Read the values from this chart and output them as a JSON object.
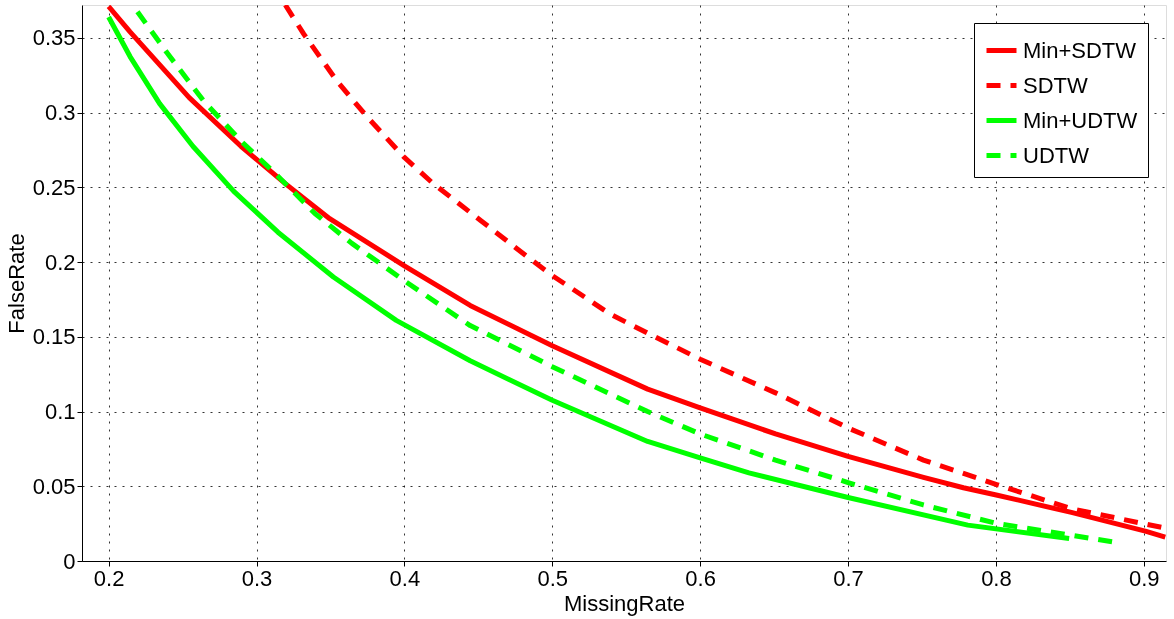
{
  "chart_data": {
    "type": "line",
    "xlabel": "MissingRate",
    "ylabel": "FalseRate",
    "xlim": [
      0.182,
      0.915
    ],
    "ylim": [
      0,
      0.372
    ],
    "xticks": [
      0.2,
      0.3,
      0.4,
      0.5,
      0.6,
      0.7,
      0.8,
      0.9
    ],
    "yticks": [
      0,
      0.05,
      0.1,
      0.15,
      0.2,
      0.25,
      0.3,
      0.35
    ],
    "grid": true,
    "legend": "top right",
    "marker": "none",
    "series": [
      {
        "name": "Min+SDTW",
        "color": "#ff0000",
        "line_style": "solid",
        "x": [
          0.2,
          0.2145,
          0.2545,
          0.2895,
          0.3195,
          0.3495,
          0.4,
          0.4445,
          0.5,
          0.5645,
          0.6,
          0.651,
          0.7,
          0.751,
          0.778,
          0.801,
          0.851,
          0.901,
          0.9145
        ],
        "values": [
          0.371,
          0.354,
          0.31,
          0.2775,
          0.2525,
          0.229,
          0.1975,
          0.171,
          0.144,
          0.115,
          0.1025,
          0.085,
          0.07,
          0.056,
          0.049,
          0.044,
          0.0325,
          0.02,
          0.016
        ]
      },
      {
        "name": "SDTW",
        "color": "#ff0000",
        "line_style": "dashed",
        "x": [
          0.3195,
          0.332,
          0.3545,
          0.3745,
          0.4,
          0.4195,
          0.452,
          0.4845,
          0.5,
          0.5395,
          0.5645,
          0.6,
          0.651,
          0.7,
          0.751,
          0.801,
          0.851,
          0.9145
        ],
        "values": [
          0.372,
          0.3525,
          0.321,
          0.2975,
          0.27,
          0.2525,
          0.2275,
          0.2025,
          0.191,
          0.165,
          0.1525,
          0.135,
          0.1125,
          0.089,
          0.0675,
          0.051,
          0.035,
          0.022
        ]
      },
      {
        "name": "Min+UDTW",
        "color": "#00ff00",
        "line_style": "solid",
        "x": [
          0.2,
          0.2145,
          0.2345,
          0.257,
          0.2845,
          0.3145,
          0.352,
          0.3945,
          0.4445,
          0.5,
          0.5645,
          0.6,
          0.633,
          0.7,
          0.781,
          0.8495
        ],
        "values": [
          0.364,
          0.3375,
          0.306,
          0.2775,
          0.2475,
          0.22,
          0.19,
          0.161,
          0.134,
          0.1075,
          0.08,
          0.069,
          0.059,
          0.0425,
          0.024,
          0.015
        ]
      },
      {
        "name": "UDTW",
        "color": "#00ff00",
        "line_style": "dashed",
        "x": [
          0.2195,
          0.2395,
          0.2645,
          0.2895,
          0.3145,
          0.3395,
          0.3645,
          0.4,
          0.4445,
          0.5,
          0.5645,
          0.6,
          0.651,
          0.7,
          0.751,
          0.801,
          0.8495,
          0.881
        ],
        "values": [
          0.3675,
          0.34,
          0.3075,
          0.281,
          0.2575,
          0.2325,
          0.2125,
          0.1875,
          0.1575,
          0.13,
          0.1,
          0.085,
          0.0675,
          0.0525,
          0.0375,
          0.025,
          0.0175,
          0.0125
        ]
      }
    ]
  }
}
